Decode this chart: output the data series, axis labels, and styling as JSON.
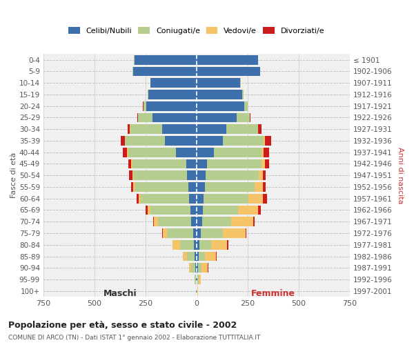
{
  "age_groups": [
    "0-4",
    "5-9",
    "10-14",
    "15-19",
    "20-24",
    "25-29",
    "30-34",
    "35-39",
    "40-44",
    "45-49",
    "50-54",
    "55-59",
    "60-64",
    "65-69",
    "70-74",
    "75-79",
    "80-84",
    "85-89",
    "90-94",
    "95-99",
    "100+"
  ],
  "birth_years": [
    "1997-2001",
    "1992-1996",
    "1987-1991",
    "1982-1986",
    "1977-1981",
    "1972-1976",
    "1967-1971",
    "1962-1966",
    "1957-1961",
    "1952-1956",
    "1947-1951",
    "1942-1946",
    "1937-1941",
    "1932-1936",
    "1927-1931",
    "1922-1926",
    "1917-1921",
    "1912-1916",
    "1907-1911",
    "1902-1906",
    "≤ 1901"
  ],
  "male": {
    "celibi": [
      305,
      310,
      225,
      235,
      245,
      215,
      170,
      155,
      100,
      50,
      45,
      40,
      38,
      30,
      28,
      15,
      12,
      8,
      5,
      3,
      2
    ],
    "coniugati": [
      2,
      2,
      2,
      5,
      15,
      70,
      155,
      195,
      235,
      265,
      265,
      265,
      235,
      195,
      160,
      130,
      70,
      40,
      20,
      5,
      2
    ],
    "vedovi": [
      0,
      0,
      0,
      0,
      0,
      0,
      2,
      2,
      5,
      5,
      5,
      5,
      10,
      15,
      20,
      20,
      35,
      20,
      10,
      2,
      0
    ],
    "divorziati": [
      0,
      0,
      0,
      0,
      2,
      5,
      10,
      20,
      20,
      15,
      15,
      12,
      10,
      8,
      5,
      2,
      2,
      0,
      0,
      0,
      0
    ]
  },
  "female": {
    "nubili": [
      300,
      310,
      215,
      225,
      235,
      195,
      145,
      130,
      85,
      50,
      45,
      40,
      35,
      30,
      28,
      20,
      15,
      10,
      8,
      5,
      2
    ],
    "coniugate": [
      2,
      2,
      2,
      5,
      15,
      65,
      155,
      200,
      235,
      270,
      260,
      245,
      220,
      175,
      140,
      110,
      55,
      30,
      18,
      5,
      2
    ],
    "vedove": [
      0,
      0,
      0,
      0,
      0,
      0,
      2,
      5,
      10,
      15,
      20,
      40,
      70,
      95,
      110,
      110,
      80,
      55,
      30,
      10,
      2
    ],
    "divorziate": [
      0,
      0,
      0,
      0,
      2,
      5,
      15,
      30,
      25,
      20,
      15,
      15,
      20,
      15,
      8,
      5,
      5,
      2,
      2,
      0,
      0
    ]
  },
  "colors": {
    "celibi": "#3d6fad",
    "coniugati": "#b5cd8e",
    "vedovi": "#f5c469",
    "divorziati": "#cc1c1c"
  },
  "xlim": 750,
  "title": "Popolazione per età, sesso e stato civile - 2002",
  "subtitle": "COMUNE DI ARCO (TN) - Dati ISTAT 1° gennaio 2002 - Elaborazione TUTTITALIA.IT",
  "ylabel_left": "Fasce di età",
  "ylabel_right": "Anni di nascita",
  "xlabel_male": "Maschi",
  "xlabel_female": "Femmine",
  "bg_color": "#f0f0f0",
  "grid_color": "#cccccc"
}
